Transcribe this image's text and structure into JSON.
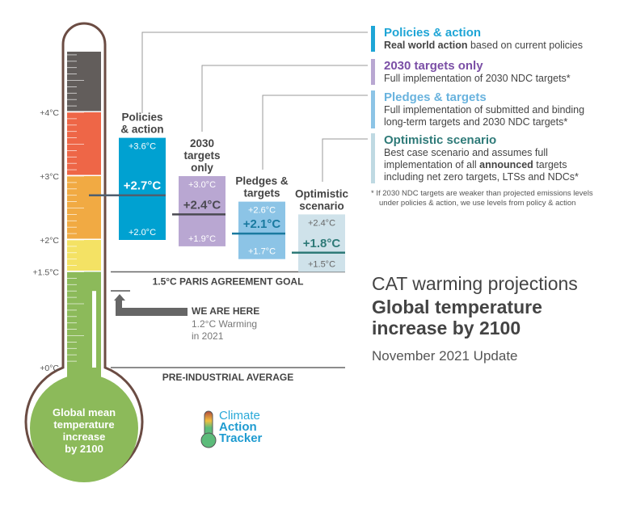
{
  "chart_data": {
    "type": "range-bar",
    "title": "CAT warming projections",
    "subtitle": "Global temperature increase by 2100",
    "update": "November 2021 Update",
    "axis_ticks": [
      {
        "value": 4,
        "label": "+4°C"
      },
      {
        "value": 3,
        "label": "+3°C"
      },
      {
        "value": 2,
        "label": "+2°C"
      },
      {
        "value": 1.5,
        "label": "+1.5°C"
      },
      {
        "value": 0,
        "label": "+0°C"
      }
    ],
    "thermometer_label": [
      "Global mean",
      "temperature",
      "increase",
      "by 2100"
    ],
    "bands": [
      {
        "from": 4,
        "to": 4.95,
        "color": "#625d5b"
      },
      {
        "from": 3,
        "to": 4,
        "color": "#ee6647"
      },
      {
        "from": 2,
        "to": 3,
        "color": "#f1aa43"
      },
      {
        "from": 1.5,
        "to": 2,
        "color": "#f4e264"
      },
      {
        "from": 0,
        "to": 1.5,
        "color": "#8cba5a"
      }
    ],
    "series": [
      {
        "name_lines": [
          "Policies",
          "& action"
        ],
        "low": 2.0,
        "median": 2.7,
        "high": 3.6,
        "low_label": "+2.0°C",
        "median_label": "+2.7°C",
        "high_label": "+3.6°C",
        "color": "#00a1d1",
        "median_color": "#ffffff",
        "minor_color": "#ffffff"
      },
      {
        "name_lines": [
          "2030",
          "targets",
          "only"
        ],
        "low": 1.9,
        "median": 2.4,
        "high": 3.0,
        "low_label": "+1.9°C",
        "median_label": "+2.4°C",
        "high_label": "+3.0°C",
        "color": "#b9a7d2",
        "median_color": "#4b4a52",
        "minor_color": "#ffffff"
      },
      {
        "name_lines": [
          "Pledges &",
          "targets"
        ],
        "low": 1.7,
        "median": 2.1,
        "high": 2.6,
        "low_label": "+1.7°C",
        "median_label": "+2.1°C",
        "high_label": "+2.6°C",
        "color": "#8cc4e6",
        "median_color": "#1a7aa0",
        "minor_color": "#ffffff"
      },
      {
        "name_lines": [
          "Optimistic",
          "scenario"
        ],
        "low": 1.5,
        "median": 1.8,
        "high": 2.4,
        "low_label": "+1.5°C",
        "median_label": "+1.8°C",
        "high_label": "+2.4°C",
        "color": "#cfe2ea",
        "median_color": "#2e7a78",
        "minor_color": "#666666"
      }
    ],
    "reference_lines": [
      {
        "value": 1.5,
        "label": "1.5°C PARIS AGREEMENT GOAL"
      },
      {
        "value": 0,
        "label": "PRE-INDUSTRIAL AVERAGE"
      }
    ],
    "current": {
      "value": 1.2,
      "title": "WE ARE HERE",
      "line1": "1.2°C Warming",
      "line2": "in 2021"
    }
  },
  "legend": [
    {
      "title": "Policies & action",
      "color": "#1ea5d6",
      "bold": "Real world action",
      "desc": " based on current policies"
    },
    {
      "title": "2030 targets only",
      "color": "#7b4fa6",
      "bar": "#b9a7d2",
      "desc": "Full implementation of 2030 NDC targets*"
    },
    {
      "title": "Pledges & targets",
      "color": "#69b3de",
      "bar": "#8cc4e6",
      "desc": "Full implementation of submitted and binding long-term targets and 2030 NDC targets*"
    },
    {
      "title": "Optimistic scenario",
      "color": "#2e7a78",
      "bar": "#bfd9e2",
      "desc1": "Best case scenario and assumes full implementation of all ",
      "bold": "announced",
      "desc2": " targets including net zero targets, LTSs and NDCs*"
    }
  ],
  "footnote": "* If 2030 NDC targets are weaker than projected emissions levels under policies & action, we use levels from policy & action",
  "logo": {
    "line1": "Climate",
    "line2": "Action",
    "line3": "Tracker"
  }
}
